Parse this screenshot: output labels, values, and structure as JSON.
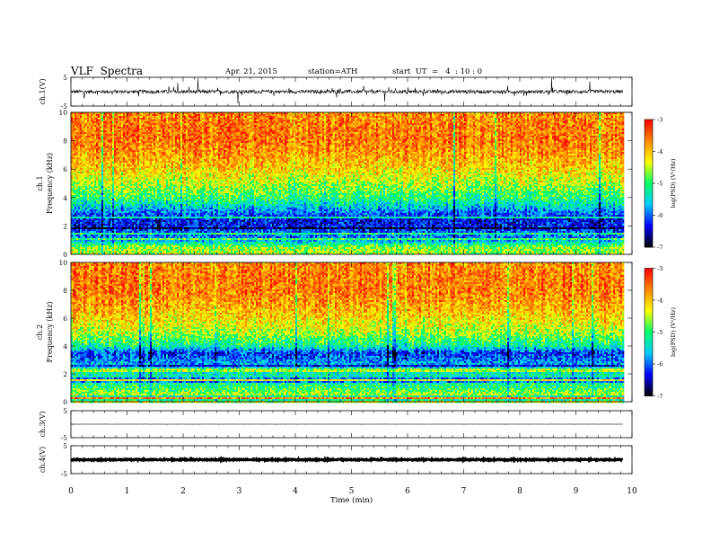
{
  "header": {
    "title": "VLF  Spectra",
    "date": "Apr. 21, 2015",
    "station": "station=ATH",
    "start": "start  UT  =   4  : 10 : 0"
  },
  "colors": {
    "colormap": [
      "#000000",
      "#0000ff",
      "#00ccff",
      "#00ff66",
      "#ffff00",
      "#ff8800",
      "#ff0000",
      "#ffffff"
    ],
    "trace": "#000000"
  },
  "chart_data": {
    "type": "heatmap",
    "xlabel": "Time  (min)",
    "xlim": [
      0,
      10
    ],
    "x_ticks": [
      "0",
      "1",
      "2",
      "3",
      "4",
      "5",
      "6",
      "7",
      "8",
      "9",
      "10"
    ],
    "data_end_min": 9.83,
    "panels": [
      {
        "kind": "waveform",
        "ylabel": "ch.1(V)",
        "ylim": [
          -5,
          5
        ],
        "y_ticks": [
          "5",
          "-5"
        ],
        "description_amplitude_V": 0.6
      },
      {
        "kind": "spectrogram",
        "ylabel_top": "ch.1",
        "ylabel": "Frequency  (kHz)",
        "ylim": [
          0,
          10
        ],
        "y_ticks": [
          "0",
          "2",
          "4",
          "6",
          "8",
          "10"
        ],
        "colorbar": {
          "label": "log(PSD) (V²/Hz)",
          "range": [
            -7,
            -3
          ],
          "ticks": [
            "-3",
            "-4",
            "-5",
            "-6",
            "-7"
          ]
        },
        "freq_profile_kHz": [
          0.5,
          1,
          1.5,
          2,
          2.5,
          3,
          3.5,
          4,
          5,
          6,
          7,
          8,
          9,
          10
        ],
        "level_profile_logPSD": [
          -4.6,
          -5.8,
          -6.0,
          -6.3,
          -6.3,
          -5.9,
          -5.4,
          -5.0,
          -4.5,
          -4.1,
          -3.8,
          -3.6,
          -3.6,
          -3.7
        ]
      },
      {
        "kind": "spectrogram",
        "ylabel_top": "ch.2",
        "ylabel": "Frequency  (kHz)",
        "ylim": [
          0,
          10
        ],
        "y_ticks": [
          "0",
          "2",
          "4",
          "6",
          "8",
          "10"
        ],
        "colorbar": {
          "label": "log(PSD) (V²/Hz)",
          "range": [
            -7,
            -3
          ],
          "ticks": [
            "-3",
            "-4",
            "-5",
            "-6",
            "-7"
          ]
        },
        "freq_profile_kHz": [
          0.5,
          1,
          1.5,
          2,
          2.5,
          3,
          3.5,
          4,
          5,
          6,
          7,
          8,
          9,
          10
        ],
        "level_profile_logPSD": [
          -4.5,
          -5.0,
          -5.2,
          -5.3,
          -5.6,
          -5.9,
          -6.2,
          -5.2,
          -4.5,
          -4.1,
          -3.8,
          -3.6,
          -3.6,
          -3.7
        ]
      },
      {
        "kind": "waveform",
        "ylabel": "ch.3(V)",
        "ylim": [
          -5,
          5
        ],
        "y_ticks": [
          "5",
          "-5"
        ],
        "description_amplitude_V": 0.05
      },
      {
        "kind": "waveform",
        "ylabel": "ch.4(V)",
        "ylim": [
          -5,
          5
        ],
        "y_ticks": [
          "5",
          "-5"
        ],
        "description_amplitude_V": 0.2
      }
    ]
  }
}
